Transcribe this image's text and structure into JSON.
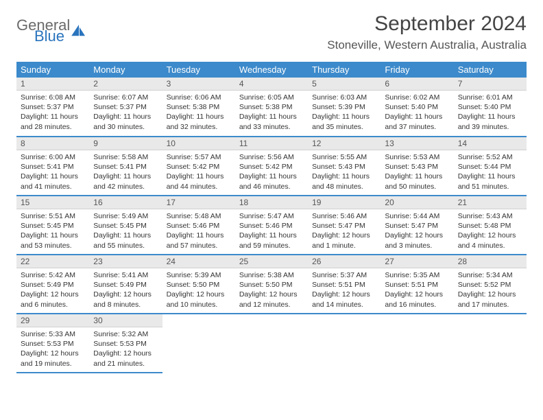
{
  "logo": {
    "general": "General",
    "blue": "Blue"
  },
  "title": "September 2024",
  "location": "Stoneville, Western Australia, Australia",
  "colors": {
    "header_bg": "#3c8acb",
    "header_text": "#ffffff",
    "daybar_bg": "#e9e9e9",
    "rule": "#3c8acb",
    "logo_blue": "#2a74bd",
    "logo_gray": "#6a6a6a"
  },
  "weekdays": [
    "Sunday",
    "Monday",
    "Tuesday",
    "Wednesday",
    "Thursday",
    "Friday",
    "Saturday"
  ],
  "weeks": [
    [
      {
        "n": "1",
        "sunrise": "Sunrise: 6:08 AM",
        "sunset": "Sunset: 5:37 PM",
        "daylight": "Daylight: 11 hours and 28 minutes."
      },
      {
        "n": "2",
        "sunrise": "Sunrise: 6:07 AM",
        "sunset": "Sunset: 5:37 PM",
        "daylight": "Daylight: 11 hours and 30 minutes."
      },
      {
        "n": "3",
        "sunrise": "Sunrise: 6:06 AM",
        "sunset": "Sunset: 5:38 PM",
        "daylight": "Daylight: 11 hours and 32 minutes."
      },
      {
        "n": "4",
        "sunrise": "Sunrise: 6:05 AM",
        "sunset": "Sunset: 5:38 PM",
        "daylight": "Daylight: 11 hours and 33 minutes."
      },
      {
        "n": "5",
        "sunrise": "Sunrise: 6:03 AM",
        "sunset": "Sunset: 5:39 PM",
        "daylight": "Daylight: 11 hours and 35 minutes."
      },
      {
        "n": "6",
        "sunrise": "Sunrise: 6:02 AM",
        "sunset": "Sunset: 5:40 PM",
        "daylight": "Daylight: 11 hours and 37 minutes."
      },
      {
        "n": "7",
        "sunrise": "Sunrise: 6:01 AM",
        "sunset": "Sunset: 5:40 PM",
        "daylight": "Daylight: 11 hours and 39 minutes."
      }
    ],
    [
      {
        "n": "8",
        "sunrise": "Sunrise: 6:00 AM",
        "sunset": "Sunset: 5:41 PM",
        "daylight": "Daylight: 11 hours and 41 minutes."
      },
      {
        "n": "9",
        "sunrise": "Sunrise: 5:58 AM",
        "sunset": "Sunset: 5:41 PM",
        "daylight": "Daylight: 11 hours and 42 minutes."
      },
      {
        "n": "10",
        "sunrise": "Sunrise: 5:57 AM",
        "sunset": "Sunset: 5:42 PM",
        "daylight": "Daylight: 11 hours and 44 minutes."
      },
      {
        "n": "11",
        "sunrise": "Sunrise: 5:56 AM",
        "sunset": "Sunset: 5:42 PM",
        "daylight": "Daylight: 11 hours and 46 minutes."
      },
      {
        "n": "12",
        "sunrise": "Sunrise: 5:55 AM",
        "sunset": "Sunset: 5:43 PM",
        "daylight": "Daylight: 11 hours and 48 minutes."
      },
      {
        "n": "13",
        "sunrise": "Sunrise: 5:53 AM",
        "sunset": "Sunset: 5:43 PM",
        "daylight": "Daylight: 11 hours and 50 minutes."
      },
      {
        "n": "14",
        "sunrise": "Sunrise: 5:52 AM",
        "sunset": "Sunset: 5:44 PM",
        "daylight": "Daylight: 11 hours and 51 minutes."
      }
    ],
    [
      {
        "n": "15",
        "sunrise": "Sunrise: 5:51 AM",
        "sunset": "Sunset: 5:45 PM",
        "daylight": "Daylight: 11 hours and 53 minutes."
      },
      {
        "n": "16",
        "sunrise": "Sunrise: 5:49 AM",
        "sunset": "Sunset: 5:45 PM",
        "daylight": "Daylight: 11 hours and 55 minutes."
      },
      {
        "n": "17",
        "sunrise": "Sunrise: 5:48 AM",
        "sunset": "Sunset: 5:46 PM",
        "daylight": "Daylight: 11 hours and 57 minutes."
      },
      {
        "n": "18",
        "sunrise": "Sunrise: 5:47 AM",
        "sunset": "Sunset: 5:46 PM",
        "daylight": "Daylight: 11 hours and 59 minutes."
      },
      {
        "n": "19",
        "sunrise": "Sunrise: 5:46 AM",
        "sunset": "Sunset: 5:47 PM",
        "daylight": "Daylight: 12 hours and 1 minute."
      },
      {
        "n": "20",
        "sunrise": "Sunrise: 5:44 AM",
        "sunset": "Sunset: 5:47 PM",
        "daylight": "Daylight: 12 hours and 3 minutes."
      },
      {
        "n": "21",
        "sunrise": "Sunrise: 5:43 AM",
        "sunset": "Sunset: 5:48 PM",
        "daylight": "Daylight: 12 hours and 4 minutes."
      }
    ],
    [
      {
        "n": "22",
        "sunrise": "Sunrise: 5:42 AM",
        "sunset": "Sunset: 5:49 PM",
        "daylight": "Daylight: 12 hours and 6 minutes."
      },
      {
        "n": "23",
        "sunrise": "Sunrise: 5:41 AM",
        "sunset": "Sunset: 5:49 PM",
        "daylight": "Daylight: 12 hours and 8 minutes."
      },
      {
        "n": "24",
        "sunrise": "Sunrise: 5:39 AM",
        "sunset": "Sunset: 5:50 PM",
        "daylight": "Daylight: 12 hours and 10 minutes."
      },
      {
        "n": "25",
        "sunrise": "Sunrise: 5:38 AM",
        "sunset": "Sunset: 5:50 PM",
        "daylight": "Daylight: 12 hours and 12 minutes."
      },
      {
        "n": "26",
        "sunrise": "Sunrise: 5:37 AM",
        "sunset": "Sunset: 5:51 PM",
        "daylight": "Daylight: 12 hours and 14 minutes."
      },
      {
        "n": "27",
        "sunrise": "Sunrise: 5:35 AM",
        "sunset": "Sunset: 5:51 PM",
        "daylight": "Daylight: 12 hours and 16 minutes."
      },
      {
        "n": "28",
        "sunrise": "Sunrise: 5:34 AM",
        "sunset": "Sunset: 5:52 PM",
        "daylight": "Daylight: 12 hours and 17 minutes."
      }
    ],
    [
      {
        "n": "29",
        "sunrise": "Sunrise: 5:33 AM",
        "sunset": "Sunset: 5:53 PM",
        "daylight": "Daylight: 12 hours and 19 minutes."
      },
      {
        "n": "30",
        "sunrise": "Sunrise: 5:32 AM",
        "sunset": "Sunset: 5:53 PM",
        "daylight": "Daylight: 12 hours and 21 minutes."
      },
      null,
      null,
      null,
      null,
      null
    ]
  ]
}
